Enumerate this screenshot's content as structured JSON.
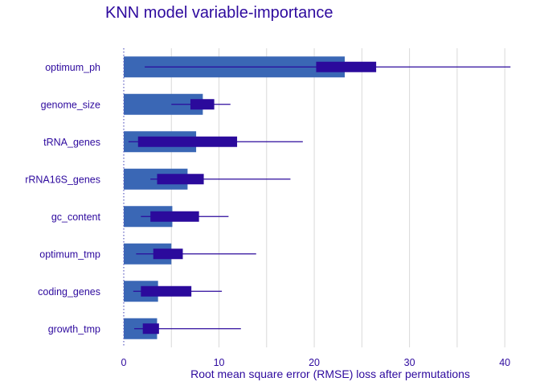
{
  "chart_data": {
    "type": "bar",
    "title": "KNN model variable-importance",
    "xlabel": "Root mean square error (RMSE) loss after permutations",
    "ylabel": "",
    "baseline": 0,
    "xlim": [
      0,
      41
    ],
    "xticks": [
      0,
      10,
      20,
      30,
      40
    ],
    "grid": "vertical",
    "legend": "none",
    "categories": [
      "optimum_ph",
      "genome_size",
      "tRNA_genes",
      "rRNA16S_genes",
      "gc_content",
      "optimum_tmp",
      "coding_genes",
      "growth_tmp"
    ],
    "values": [
      23.2,
      8.3,
      7.6,
      6.7,
      5.1,
      5.0,
      3.6,
      3.5
    ],
    "boxplot": [
      {
        "min": 2.2,
        "q1": 20.2,
        "q3": 26.5,
        "max": 40.6
      },
      {
        "min": 5.0,
        "q1": 7.0,
        "q3": 9.5,
        "max": 11.2
      },
      {
        "min": 0.5,
        "q1": 1.5,
        "q3": 11.9,
        "max": 18.8
      },
      {
        "min": 2.8,
        "q1": 3.5,
        "q3": 8.4,
        "max": 17.5
      },
      {
        "min": 1.8,
        "q1": 2.8,
        "q3": 7.9,
        "max": 11.0
      },
      {
        "min": 1.3,
        "q1": 3.1,
        "q3": 6.2,
        "max": 13.9
      },
      {
        "min": 1.0,
        "q1": 1.8,
        "q3": 7.1,
        "max": 10.3
      },
      {
        "min": 1.1,
        "q1": 2.0,
        "q3": 3.7,
        "max": 12.3
      }
    ],
    "colors": {
      "bar": "#3a67b5",
      "box": "#2b0a9c",
      "whisker": "#2b0a9c",
      "text": "#2e0a9e",
      "grid": "#d9d9d9",
      "baseline": "#5c5cc0"
    }
  }
}
